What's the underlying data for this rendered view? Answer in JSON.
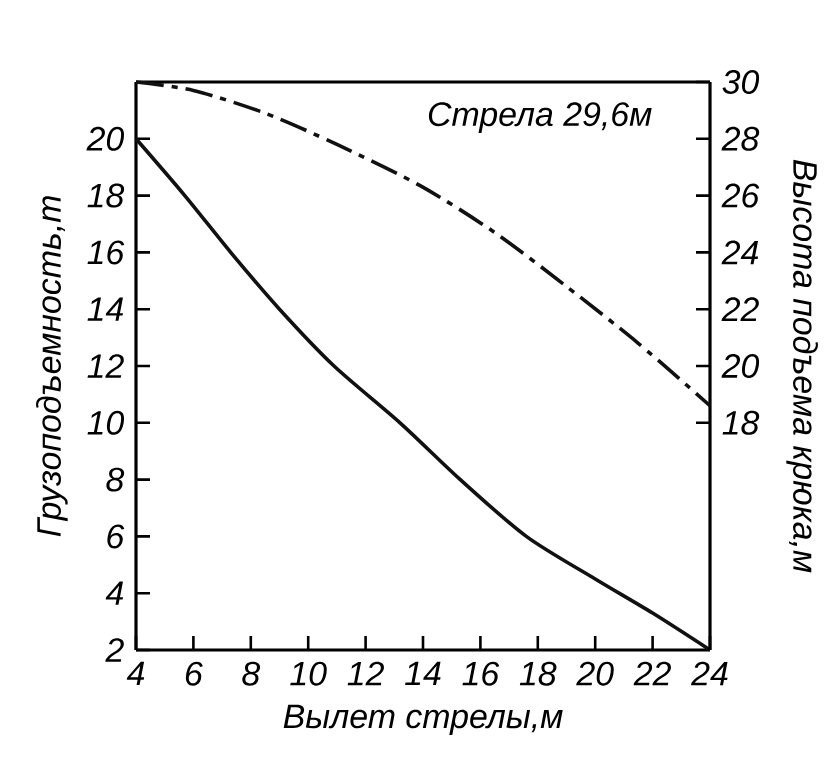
{
  "chart_data": {
    "type": "line",
    "xlabel": "Вылет стрелы,м",
    "ylabel": "Грузоподъемность,т",
    "y2label": "Высота подъема крюка,м",
    "annotations": [
      "Стрела 29,6м"
    ],
    "xlim": [
      4,
      24
    ],
    "xticks": [
      4,
      6,
      8,
      10,
      12,
      14,
      16,
      18,
      20,
      22,
      24
    ],
    "ylim": [
      2,
      22
    ],
    "yticks": [
      2,
      4,
      6,
      8,
      10,
      12,
      14,
      16,
      18,
      20
    ],
    "y2lim": [
      10,
      30
    ],
    "y2ticks": [
      18,
      20,
      22,
      24,
      26,
      28,
      30
    ],
    "grid": false,
    "marker": "none",
    "series": [
      {
        "color": "#111111",
        "line_style": "solid",
        "x": [
          4,
          5.7,
          7.3,
          9,
          10.9,
          13.2,
          15.3,
          17.6,
          20,
          22,
          24
        ],
        "values": [
          20,
          18,
          16,
          14,
          12,
          10,
          8,
          6,
          4.5,
          3.3,
          2
        ]
      },
      {
        "color": "#111111",
        "line_style": "dashed",
        "axis": "y2",
        "x": [
          4,
          6,
          8.5,
          11,
          13.9,
          16.5,
          19,
          21.5,
          24
        ],
        "values": [
          30,
          29.7,
          28.9,
          27.8,
          26.35,
          24.7,
          22.8,
          20.8,
          18.6
        ]
      }
    ]
  }
}
